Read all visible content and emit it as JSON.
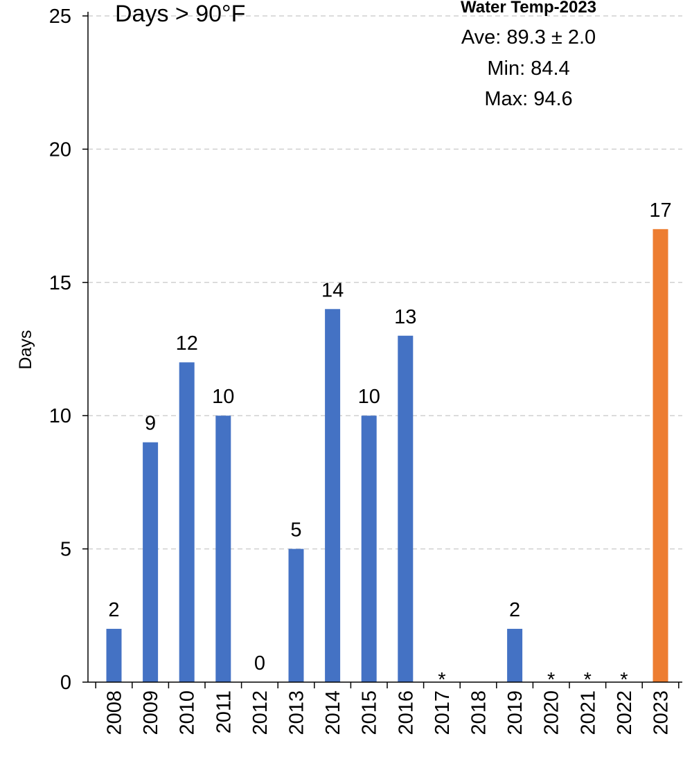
{
  "chart_data": {
    "type": "bar",
    "title": "Days > 90°F",
    "xlabel": "",
    "ylabel": "Days",
    "ylim": [
      0,
      25
    ],
    "yticks": [
      0,
      5,
      10,
      15,
      20,
      25
    ],
    "grid": "horizontal dashed",
    "categories": [
      "2008",
      "2009",
      "2010",
      "2011",
      "2012",
      "2013",
      "2014",
      "2015",
      "2016",
      "2017",
      "2018",
      "2019",
      "2020",
      "2021",
      "2022",
      "2023"
    ],
    "values": [
      2,
      9,
      12,
      10,
      0,
      5,
      14,
      10,
      13,
      null,
      null,
      2,
      null,
      null,
      null,
      17
    ],
    "data_labels": [
      "2",
      "9",
      "12",
      "10",
      "0",
      "5",
      "14",
      "10",
      "13",
      "*",
      "",
      "2",
      "*",
      "*",
      "*",
      "17"
    ],
    "colors": {
      "default": "#4472C4",
      "highlight": "#ED7D31"
    },
    "highlight_category": "2023",
    "annotation": {
      "title": "Water Temp-2023",
      "lines": [
        "Ave: 89.3 ± 2.0",
        "Min: 84.4",
        "Max: 94.6"
      ]
    }
  }
}
